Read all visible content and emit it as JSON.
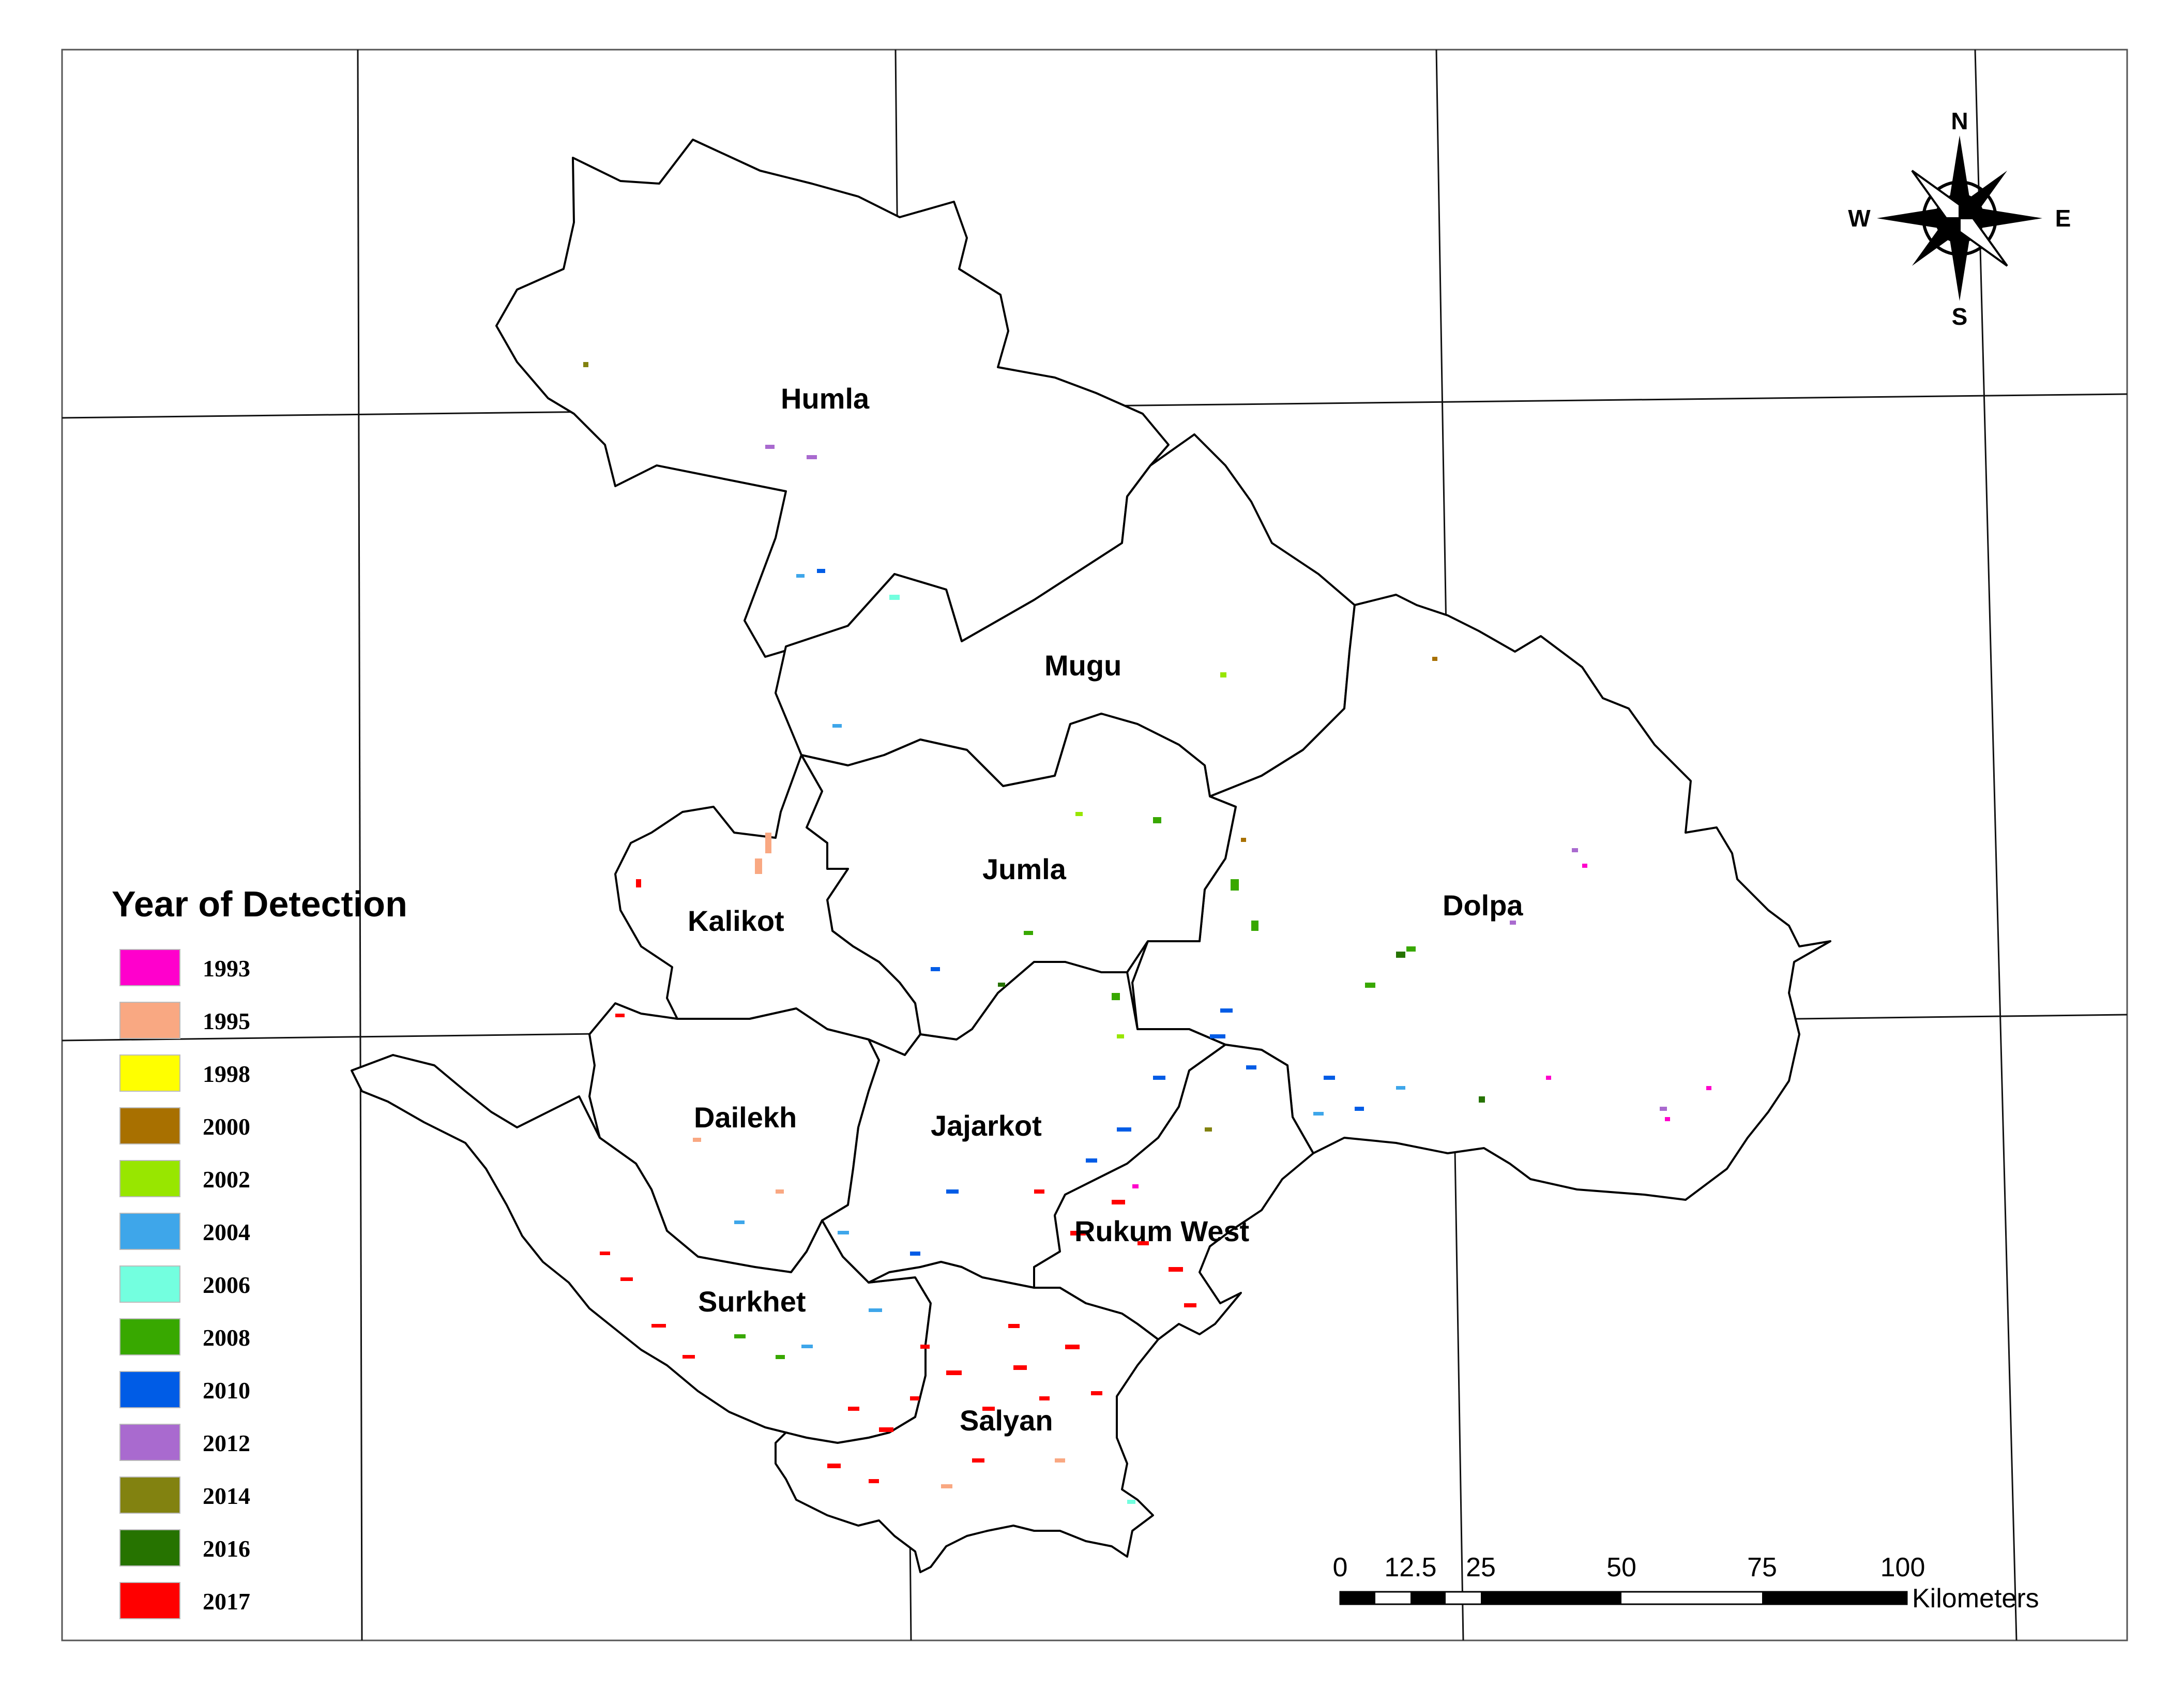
{
  "legend": {
    "title": "Year of Detection",
    "items": [
      {
        "year": "1993",
        "color": "#ff00cc"
      },
      {
        "year": "1995",
        "color": "#f9a882"
      },
      {
        "year": "1998",
        "color": "#ffff00"
      },
      {
        "year": "2000",
        "color": "#a87000"
      },
      {
        "year": "2002",
        "color": "#98e600"
      },
      {
        "year": "2004",
        "color": "#3ea6ea"
      },
      {
        "year": "2006",
        "color": "#73ffdf"
      },
      {
        "year": "2008",
        "color": "#38a800"
      },
      {
        "year": "2010",
        "color": "#005ce6"
      },
      {
        "year": "2012",
        "color": "#a96acf"
      },
      {
        "year": "2014",
        "color": "#828210"
      },
      {
        "year": "2016",
        "color": "#267300"
      },
      {
        "year": "2017",
        "color": "#ff0000"
      }
    ]
  },
  "districts": [
    "Humla",
    "Mugu",
    "Jumla",
    "Dolpa",
    "Kalikot",
    "Dailekh",
    "Jajarkot",
    "Rukum West",
    "Surkhet",
    "Salyan"
  ],
  "compass": {
    "n": "N",
    "s": "S",
    "e": "E",
    "w": "W"
  },
  "scale_bar": {
    "ticks": [
      "0",
      "12.5",
      "25",
      "50",
      "75",
      "100"
    ],
    "unit": "Kilometers"
  }
}
